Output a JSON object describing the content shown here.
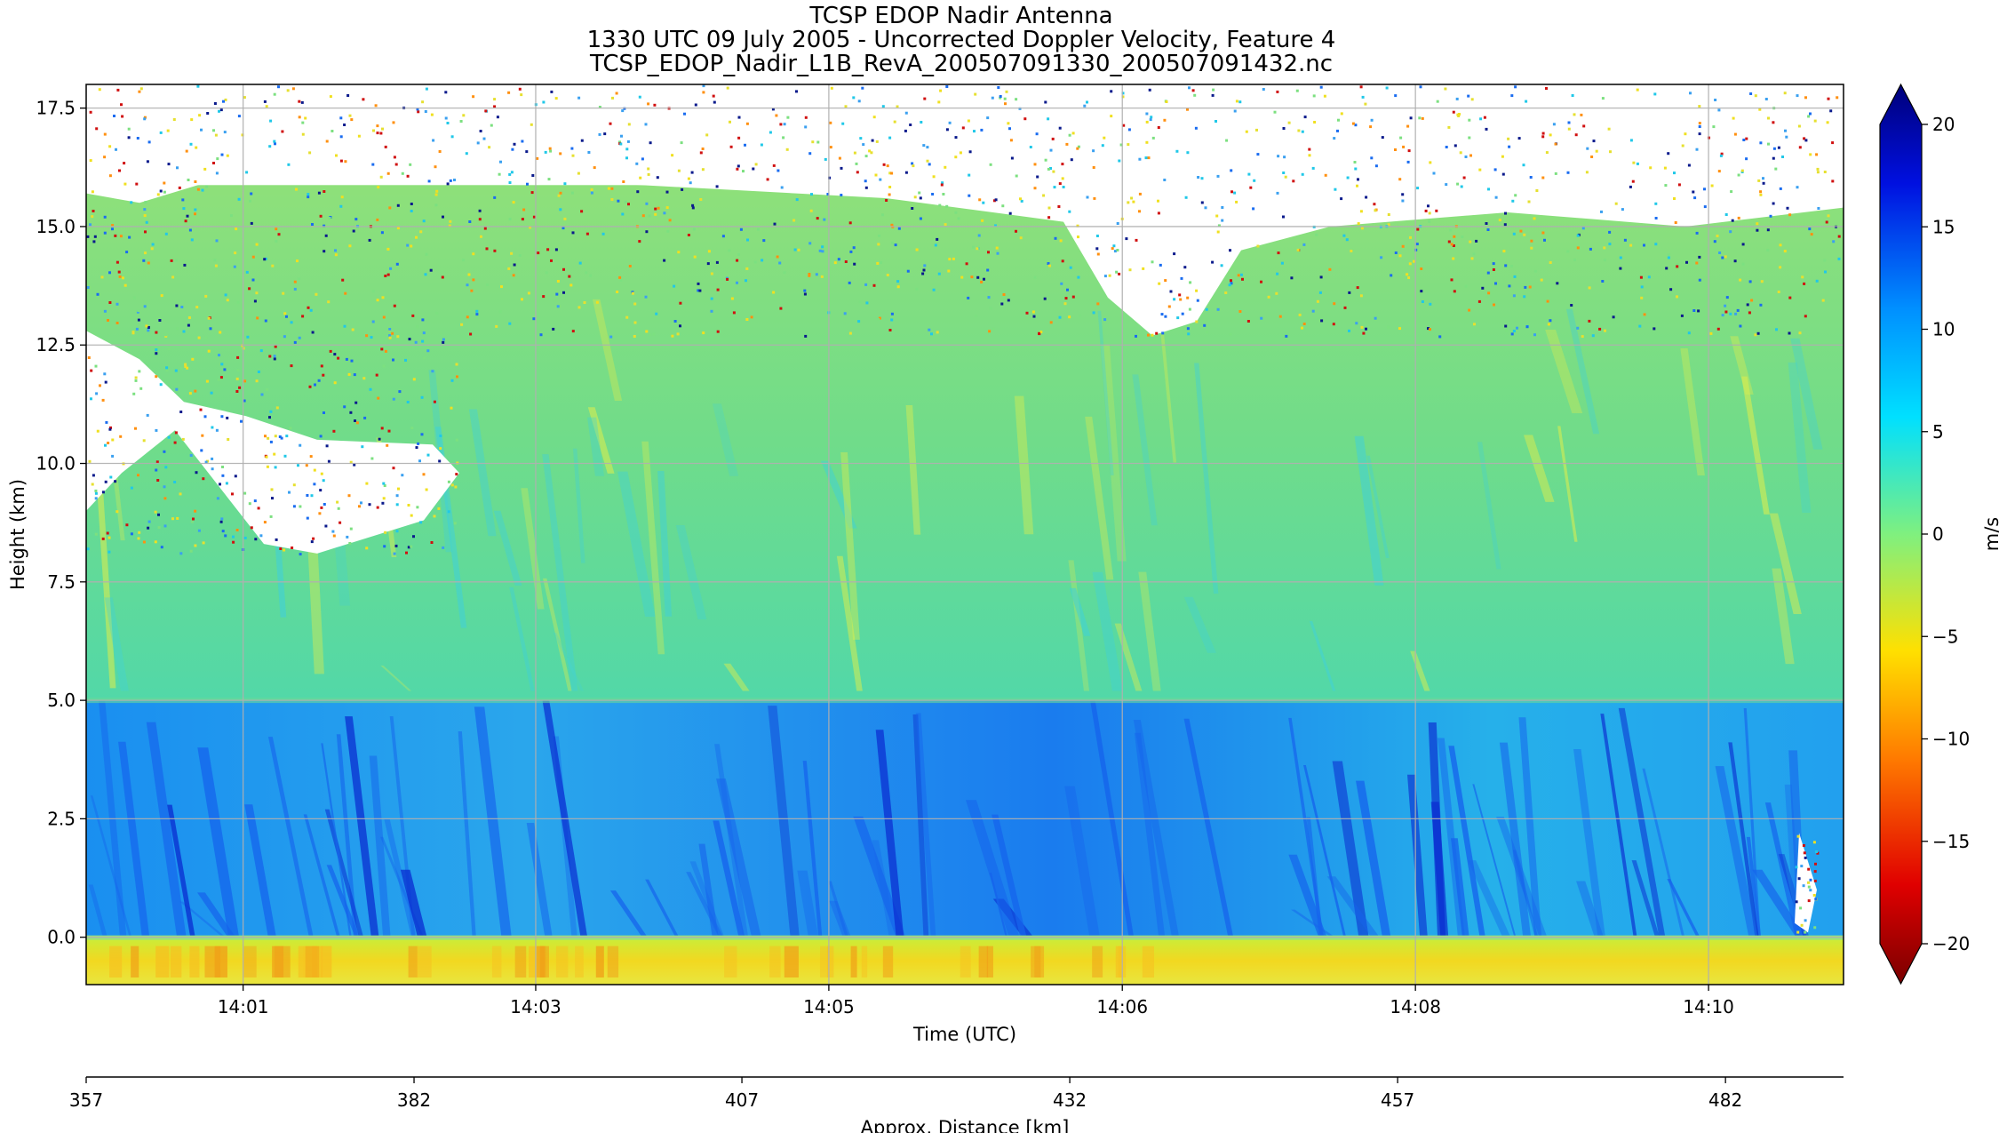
{
  "chart_data": {
    "type": "heatmap",
    "title_lines": [
      "TCSP EDOP Nadir Antenna",
      "1330 UTC 09 July 2005 - Uncorrected Doppler Velocity, Feature 4",
      "TCSP_EDOP_Nadir_L1B_RevA_200507091330_200507091432.nc"
    ],
    "xlabel": "Time (UTC)",
    "ylabel": "Height (km)",
    "x2label": "Approx. Distance [km]",
    "ylim": [
      -1.0,
      18.0
    ],
    "yticks": [
      0.0,
      2.5,
      5.0,
      7.5,
      10.0,
      12.5,
      15.0,
      17.5
    ],
    "ytick_labels": [
      "0.0",
      "2.5",
      "5.0",
      "7.5",
      "10.0",
      "12.5",
      "15.0",
      "17.5"
    ],
    "xtick_labels": [
      "14:01",
      "14:03",
      "14:05",
      "14:06",
      "14:08",
      "14:10"
    ],
    "xtick_fraction": [
      0.0893,
      0.2558,
      0.4226,
      0.5896,
      0.7564,
      0.9232
    ],
    "x2_range": [
      357,
      491
    ],
    "x2ticks": [
      357,
      382,
      407,
      432,
      457,
      482
    ],
    "x2tick_labels": [
      "357",
      "382",
      "407",
      "432",
      "457",
      "482"
    ],
    "colorbar": {
      "label": "m/s",
      "range": [
        -20,
        20
      ],
      "extend": "both",
      "colormap": "jet_r",
      "ticks": [
        -20,
        -15,
        -10,
        -5,
        0,
        5,
        10,
        15,
        20
      ],
      "tick_labels": [
        "−20",
        "−15",
        "−10",
        "−5",
        "0",
        "5",
        "10",
        "15",
        "20"
      ]
    },
    "grid": true,
    "field_summary": {
      "below_ground_km": [
        -1.0,
        0.0
      ],
      "below_ground_velocity_ms": -8,
      "lower_layer_km": [
        0.0,
        5.0
      ],
      "lower_layer_velocity_ms": 8,
      "upper_layer_km": [
        5.0,
        15.5
      ],
      "upper_layer_velocity_ms": 1,
      "noise_above_km": 15.5
    },
    "colors": {
      "deep_blue": "#0a1a8c",
      "blue": "#1a6cf0",
      "cyan": "#20c8e8",
      "green": "#7ce080",
      "yellow": "#f0e020",
      "orange": "#ff9010",
      "red": "#d01010",
      "dark_red": "#7a0000"
    }
  }
}
